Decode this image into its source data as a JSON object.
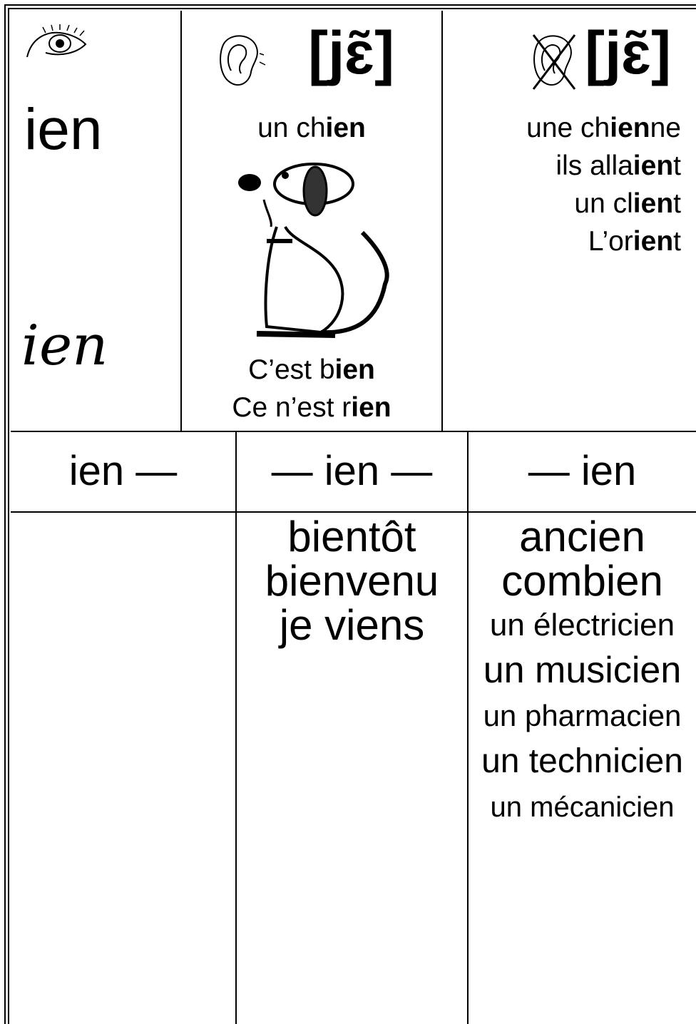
{
  "top": {
    "spelling": {
      "print": "ien",
      "cursive": "ien"
    },
    "sound": {
      "phoneme": "[jɛ̃]",
      "example": [
        {
          "text": "un ch"
        },
        {
          "text": "ien",
          "bold": true
        }
      ],
      "sentences": [
        [
          {
            "text": "C’est b"
          },
          {
            "text": "ien",
            "bold": true
          }
        ],
        [
          {
            "text": "Ce n’est r"
          },
          {
            "text": "ien",
            "bold": true
          }
        ]
      ]
    },
    "not_sound": {
      "phoneme": "[jɛ̃]",
      "examples": [
        [
          {
            "text": "une ch"
          },
          {
            "text": "ien",
            "bold": true
          },
          {
            "text": "ne"
          }
        ],
        [
          {
            "text": "ils alla"
          },
          {
            "text": "ien",
            "bold": true
          },
          {
            "text": "t"
          }
        ],
        [
          {
            "text": "un cl"
          },
          {
            "text": "ien",
            "bold": true
          },
          {
            "text": "t"
          }
        ],
        [
          {
            "text": "L’or"
          },
          {
            "text": "ien",
            "bold": true
          },
          {
            "text": "t"
          }
        ]
      ]
    }
  },
  "positions": {
    "start": {
      "header": "ien —",
      "words": []
    },
    "middle": {
      "header": "— ien —",
      "words": [
        "bientôt",
        "bienvenu",
        "je viens"
      ]
    },
    "end": {
      "header": "— ien",
      "words": [
        "ancien",
        "combien",
        "un électricien",
        "un musicien",
        "un pharmacien",
        "un technicien",
        "un mécanicien"
      ]
    }
  }
}
